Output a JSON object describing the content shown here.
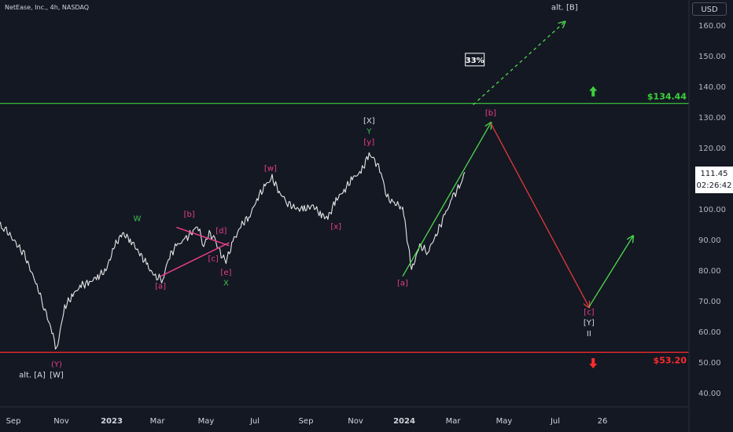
{
  "header": {
    "title": "NetEase, Inc., 4h, NASDAQ"
  },
  "price_axis": {
    "currency": "USD",
    "current_price": "111.45",
    "countdown": "02:26:42"
  },
  "colors": {
    "background": "#141823",
    "axis_text": "#d1d4dc",
    "grid_text": "#b2b5be",
    "price_series": "#e6e6e6",
    "magenta_labels": "#e83e8c",
    "green_labels": "#3fbf4f",
    "resistance": "#3ccf3c",
    "support": "#ff2b2b",
    "green_projection": "#4cd94c",
    "red_projection": "#e23a3a",
    "white_labels": "#d7dae0"
  },
  "chart_data": {
    "type": "line",
    "title": "NetEase, Inc., 4h, NASDAQ",
    "xlabel": "",
    "ylabel": "",
    "ylim": [
      35,
      168
    ],
    "y_ticks": [
      40,
      50,
      60,
      70,
      80,
      90,
      100,
      110,
      120,
      130,
      140,
      150,
      160
    ],
    "x_ticks": [
      "Sep",
      "Nov",
      "2023",
      "Mar",
      "May",
      "Jul",
      "Sep",
      "Nov",
      "2024",
      "Mar",
      "May",
      "Jul",
      "26"
    ],
    "x_tick_dates": [
      "2022-09-01",
      "2022-11-01",
      "2023-01-01",
      "2023-03-01",
      "2023-05-01",
      "2023-07-01",
      "2023-09-01",
      "2023-11-01",
      "2024-01-01",
      "2024-03-01",
      "2024-05-01",
      "2024-07-01",
      "2024-08-26"
    ],
    "grid": false,
    "series": [
      {
        "type": "price",
        "x": [
          "2022-08-05",
          "2022-08-20",
          "2022-09-01",
          "2022-09-15",
          "2022-10-01",
          "2022-10-10",
          "2022-10-20",
          "2022-10-26",
          "2022-11-05",
          "2022-11-15",
          "2022-11-25",
          "2022-12-05",
          "2022-12-15",
          "2022-12-25",
          "2023-01-05",
          "2023-01-15",
          "2023-01-25",
          "2023-02-05",
          "2023-02-15",
          "2023-02-25",
          "2023-03-08",
          "2023-03-15",
          "2023-03-25",
          "2023-04-05",
          "2023-04-15",
          "2023-04-20",
          "2023-04-28",
          "2023-05-05",
          "2023-05-12",
          "2023-05-20",
          "2023-05-26",
          "2023-06-05",
          "2023-06-15",
          "2023-06-25",
          "2023-07-05",
          "2023-07-15",
          "2023-07-22",
          "2023-08-01",
          "2023-08-10",
          "2023-08-20",
          "2023-08-30",
          "2023-09-10",
          "2023-09-20",
          "2023-09-28",
          "2023-10-08",
          "2023-10-18",
          "2023-10-28",
          "2023-11-08",
          "2023-11-18",
          "2023-11-25",
          "2023-12-03",
          "2023-12-10",
          "2023-12-18",
          "2023-12-28",
          "2023-12-30",
          "2024-01-10",
          "2024-01-20",
          "2024-01-30",
          "2024-02-10",
          "2024-02-20",
          "2024-03-01",
          "2024-03-10",
          "2024-03-15"
        ],
        "y": [
          96,
          94,
          90,
          85,
          75,
          68,
          60,
          54,
          68,
          72,
          75,
          76,
          78,
          80,
          88,
          92,
          90,
          86,
          82,
          78,
          77,
          84,
          88,
          90,
          93,
          95,
          88,
          92,
          90,
          85,
          83,
          90,
          95,
          98,
          104,
          108,
          110,
          105,
          102,
          100,
          100,
          101,
          98,
          97,
          103,
          106,
          110,
          112,
          118,
          116,
          112,
          104,
          102,
          101,
          101,
          80,
          88,
          86,
          92,
          98,
          104,
          108,
          112
        ]
      }
    ],
    "levels": [
      {
        "name": "resistance",
        "value": 134.44,
        "label": "$134.44"
      },
      {
        "name": "support",
        "value": 53.2,
        "label": "$53.20"
      }
    ],
    "projections": [
      {
        "name": "green-impulse-b",
        "x": [
          "2023-12-30",
          "2024-04-15"
        ],
        "y": [
          78,
          128
        ]
      },
      {
        "name": "red-wave-c",
        "x": [
          "2024-04-15",
          "2024-08-10"
        ],
        "y": [
          128,
          68
        ]
      },
      {
        "name": "green-recovery",
        "x": [
          "2024-08-10",
          "2024-10-01"
        ],
        "y": [
          68,
          91
        ]
      },
      {
        "name": "alt-b-dashed",
        "x": [
          "2024-03-25",
          "2024-07-12"
        ],
        "y": [
          134,
          161
        ]
      }
    ],
    "pattern_lines": [
      {
        "name": "triangle-upper",
        "x": [
          "2023-03-25",
          "2023-05-30"
        ],
        "y": [
          94,
          88
        ]
      },
      {
        "name": "triangle-lower",
        "x": [
          "2023-03-05",
          "2023-05-30"
        ],
        "y": [
          78,
          89
        ]
      }
    ],
    "wave_labels": [
      {
        "text": "(Y)",
        "x": "2022-10-26",
        "y": 48.5,
        "color": "magenta"
      },
      {
        "text": "alt. [A]",
        "x": "2022-09-25",
        "y": 45,
        "color": "white"
      },
      {
        "text": "[W]",
        "x": "2022-10-26",
        "y": 45,
        "color": "white"
      },
      {
        "text": "W",
        "x": "2023-02-03",
        "y": 96,
        "color": "green"
      },
      {
        "text": "[a]",
        "x": "2023-03-05",
        "y": 74,
        "color": "magenta"
      },
      {
        "text": "[b]",
        "x": "2023-04-10",
        "y": 97.5,
        "color": "magenta"
      },
      {
        "text": "[c]",
        "x": "2023-05-10",
        "y": 83,
        "color": "magenta"
      },
      {
        "text": "[d]",
        "x": "2023-05-20",
        "y": 92,
        "color": "magenta"
      },
      {
        "text": "[e]",
        "x": "2023-05-26",
        "y": 78.5,
        "color": "magenta"
      },
      {
        "text": "X",
        "x": "2023-05-26",
        "y": 75,
        "color": "green"
      },
      {
        "text": "[w]",
        "x": "2023-07-20",
        "y": 112.5,
        "color": "magenta"
      },
      {
        "text": "[x]",
        "x": "2023-10-08",
        "y": 93.5,
        "color": "magenta"
      },
      {
        "text": "[X]",
        "x": "2023-11-18",
        "y": 128,
        "color": "white"
      },
      {
        "text": "Y",
        "x": "2023-11-18",
        "y": 124.5,
        "color": "green"
      },
      {
        "text": "[y]",
        "x": "2023-11-18",
        "y": 121,
        "color": "magenta"
      },
      {
        "text": "[a]",
        "x": "2023-12-30",
        "y": 75,
        "color": "magenta"
      },
      {
        "text": "[b]",
        "x": "2024-04-15",
        "y": 130.5,
        "color": "magenta"
      },
      {
        "text": "[c]",
        "x": "2024-08-10",
        "y": 65.5,
        "color": "magenta"
      },
      {
        "text": "[Y]",
        "x": "2024-08-10",
        "y": 62,
        "color": "white"
      },
      {
        "text": "II",
        "x": "2024-08-10",
        "y": 58.5,
        "color": "white"
      },
      {
        "text": "alt. [B]",
        "x": "2024-07-12",
        "y": 165,
        "color": "white"
      }
    ],
    "annotations": [
      {
        "text": "33%",
        "x": "2024-03-27",
        "y": 148.5,
        "style": "boxed"
      }
    ],
    "arrows": [
      {
        "name": "up-arrow",
        "color": "green",
        "x": "2024-08-15",
        "y": 138
      },
      {
        "name": "down-arrow",
        "color": "red",
        "x": "2024-08-15",
        "y": 50
      }
    ]
  }
}
